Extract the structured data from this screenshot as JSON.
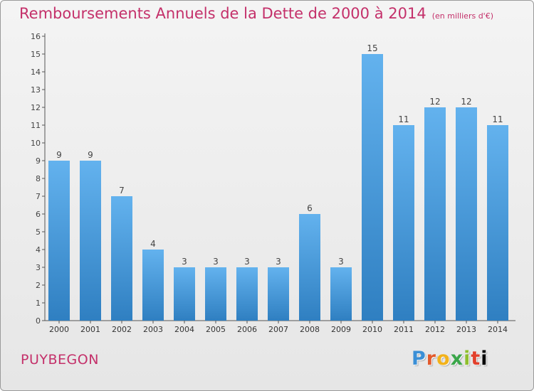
{
  "title": "Remboursements Annuels de la Dette de 2000 à 2014",
  "unit": "(en milliers d'€)",
  "town": "PUYBEGON",
  "logo": "Proxiti",
  "colors": {
    "accent": "#c4306a",
    "bar_top": "#63b2ee",
    "bar_bottom": "#2f7fc1"
  },
  "chart_data": {
    "type": "bar",
    "title": "Remboursements Annuels de la Dette de 2000 à 2014",
    "subtitle": "(en milliers d'€)",
    "categories": [
      "2000",
      "2001",
      "2002",
      "2003",
      "2004",
      "2005",
      "2006",
      "2007",
      "2008",
      "2009",
      "2010",
      "2011",
      "2012",
      "2013",
      "2014"
    ],
    "values": [
      9,
      9,
      7,
      4,
      3,
      3,
      3,
      3,
      6,
      3,
      15,
      11,
      12,
      12,
      11
    ],
    "ylim": [
      0,
      16
    ],
    "yticks": [
      0,
      1,
      2,
      3,
      4,
      5,
      6,
      7,
      8,
      9,
      10,
      11,
      12,
      13,
      14,
      15,
      16
    ],
    "grid": false,
    "data_labels": true
  }
}
